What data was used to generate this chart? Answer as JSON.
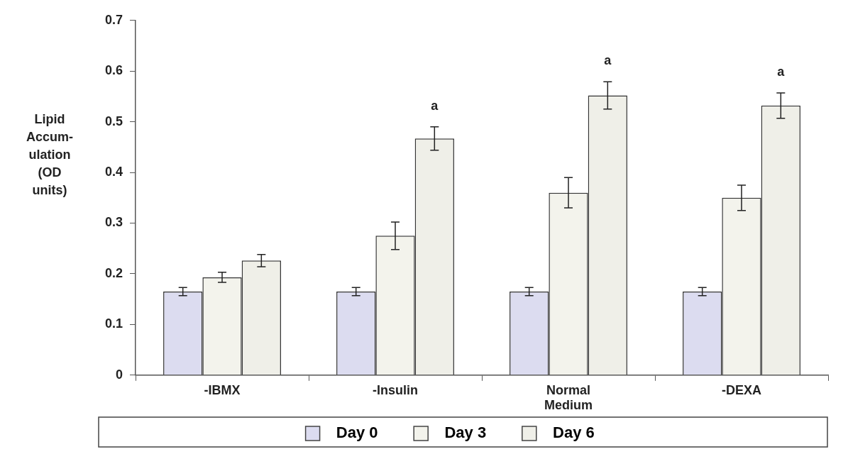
{
  "chart_data": {
    "type": "bar",
    "ylabel": "Lipid\nAccum-\nulation\n(OD\nunits)",
    "categories": [
      "-IBMX",
      "-Insulin",
      "Normal Medium",
      "-DEXA"
    ],
    "series": [
      {
        "name": "Day 0",
        "color": "#dcdcf0",
        "values": [
          0.165,
          0.165,
          0.165,
          0.165
        ],
        "errors": [
          0.008,
          0.008,
          0.008,
          0.008
        ]
      },
      {
        "name": "Day 3",
        "color": "#f3f3ec",
        "values": [
          0.193,
          0.275,
          0.36,
          0.35
        ],
        "errors": [
          0.01,
          0.027,
          0.03,
          0.025
        ]
      },
      {
        "name": "Day 6",
        "color": "#efefe8",
        "values": [
          0.226,
          0.467,
          0.552,
          0.532
        ],
        "errors": [
          0.012,
          0.023,
          0.027,
          0.025
        ],
        "value_labels": [
          null,
          "a",
          "a",
          "a"
        ]
      }
    ],
    "ylim": [
      0,
      0.7
    ],
    "yticks": [
      0,
      0.1,
      0.2,
      0.3,
      0.4,
      0.5,
      0.6,
      0.7
    ],
    "grid": false,
    "legend": "bottom"
  }
}
